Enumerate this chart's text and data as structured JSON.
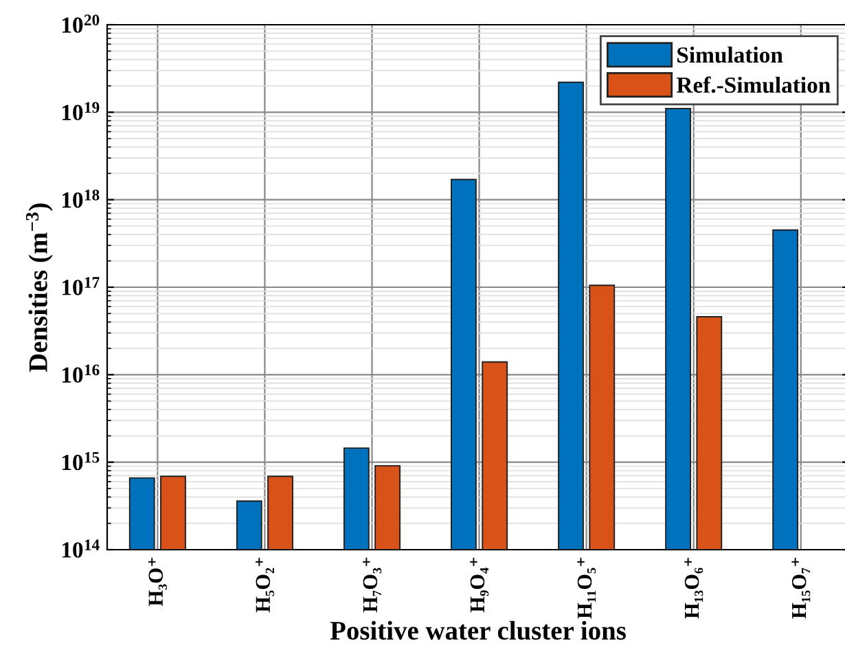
{
  "chart_data": {
    "type": "bar",
    "xlabel": "Positive water cluster ions",
    "ylabel": "Densities (m$^{−3}$)",
    "categories": [
      "H₃O⁺",
      "H₅O₂⁺",
      "H₇O₃⁺",
      "H₉O₄⁺",
      "H₁₁O₅⁺",
      "H₁₃O₆⁺",
      "H₁₅O₇⁺"
    ],
    "series": [
      {
        "name": "Simulation",
        "color": "#0072bd",
        "values": [
          660000000000000.0,
          360000000000000.0,
          1450000000000000.0,
          1.7e+18,
          2.2e+19,
          1.1e+19,
          4.5e+17
        ]
      },
      {
        "name": "Ref.-Simulation",
        "color": "#d95319",
        "values": [
          690000000000000.0,
          690000000000000.0,
          910000000000000.0,
          1.4e+16,
          1.05e+17,
          4.6e+16,
          null
        ]
      }
    ],
    "log": "y",
    "ylim": [
      100000000000000.0,
      1e+20
    ],
    "yticks": [
      {
        "value": 100000000000000.0,
        "label": "10$^{14}$"
      },
      {
        "value": 1000000000000000.0,
        "label": "10$^{15}$"
      },
      {
        "value": 1e+16,
        "label": "10$^{16}$"
      },
      {
        "value": 1e+17,
        "label": "10$^{17}$"
      },
      {
        "value": 1e+18,
        "label": "10$^{18}$"
      },
      {
        "value": 1e+19,
        "label": "10$^{19}$"
      },
      {
        "value": 1e+20,
        "label": "10$^{20}$"
      }
    ],
    "grid": true,
    "legend": "top right"
  }
}
